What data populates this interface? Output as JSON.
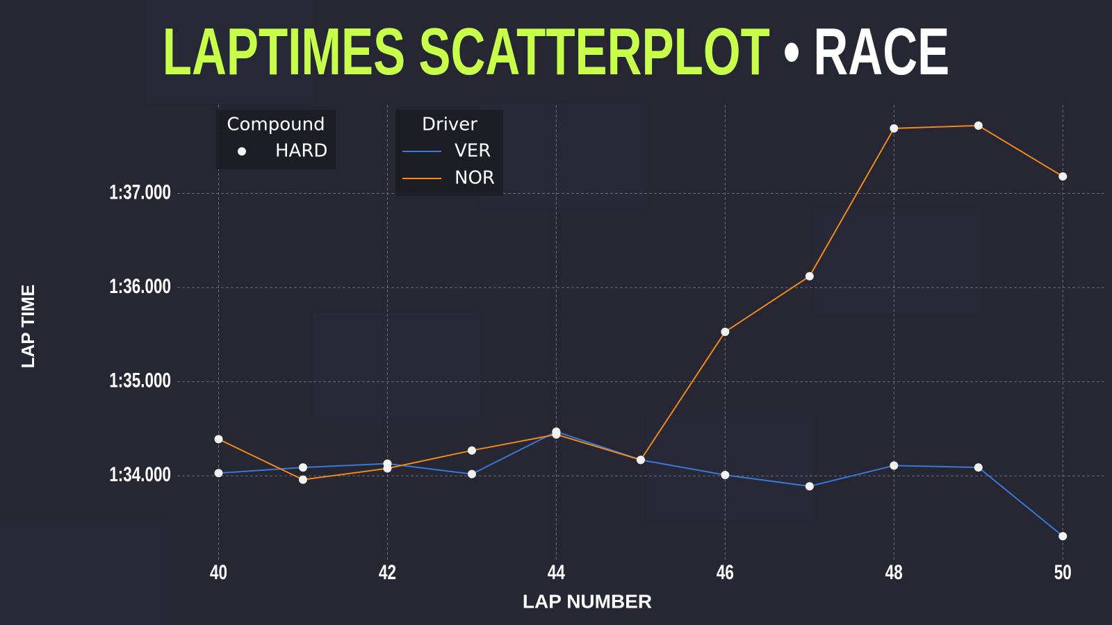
{
  "chart_data": {
    "type": "line",
    "title": "LAPTIMES SCATTERPLOT",
    "title_separator": "•",
    "subtitle": "RACE",
    "title_color": "#c8ff4a",
    "subtitle_color": "#ffffff",
    "xlabel": "LAP NUMBER",
    "ylabel": "LAP TIME",
    "x": [
      40,
      41,
      42,
      43,
      44,
      45,
      46,
      47,
      48,
      49,
      50
    ],
    "xlim": [
      39.51,
      50.5
    ],
    "xticks": [
      40,
      42,
      44,
      46,
      48,
      50
    ],
    "ylim": [
      93.11,
      97.94
    ],
    "yticks": [
      {
        "value": 94,
        "label": "1:34.000"
      },
      {
        "value": 95,
        "label": "1:35.000"
      },
      {
        "value": 96,
        "label": "1:36.000"
      },
      {
        "value": 97,
        "label": "1:37.000"
      }
    ],
    "grid": true,
    "legend_title": "Driver",
    "compound_legend": {
      "title": "Compound",
      "labels": [
        "HARD"
      ],
      "marker_color": "#f2f2f2"
    },
    "series": [
      {
        "name": "VER",
        "color": "#3a78d8",
        "values": [
          94.03,
          94.09,
          94.13,
          94.02,
          94.47,
          94.17,
          94.01,
          93.89,
          94.11,
          94.09,
          93.36
        ]
      },
      {
        "name": "NOR",
        "color": "#f08a1c",
        "values": [
          94.39,
          93.96,
          94.08,
          94.27,
          94.44,
          94.17,
          95.53,
          96.12,
          97.69,
          97.72,
          97.18
        ]
      }
    ]
  }
}
